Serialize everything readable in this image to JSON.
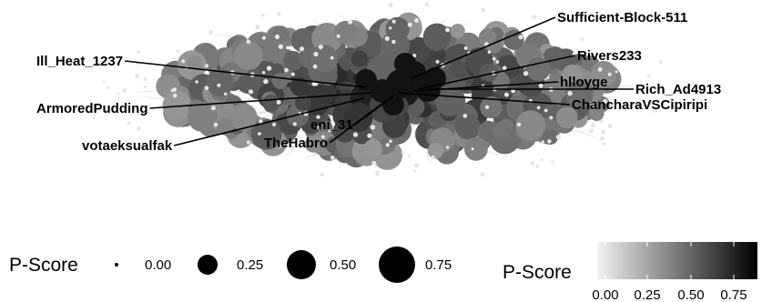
{
  "chart_data": {
    "type": "network",
    "labels": [
      "Sufficient-Block-511",
      "Ill_Heat_1237",
      "Rivers233",
      "hlloyge",
      "Rich_Ad4913",
      "ArmoredPudding",
      "ChancharaVSCipiripi",
      "eni_31",
      "votaeksualfak",
      "TheHabro"
    ],
    "size_legend": {
      "title": "P-Score",
      "values": [
        "0.00",
        "0.25",
        "0.50",
        "0.75"
      ]
    },
    "color_legend": {
      "title": "P-Score",
      "ticks": [
        "0.00",
        "0.25",
        "0.50",
        "0.75"
      ],
      "low_color": "#f2f2f2",
      "high_color": "#000000"
    }
  }
}
